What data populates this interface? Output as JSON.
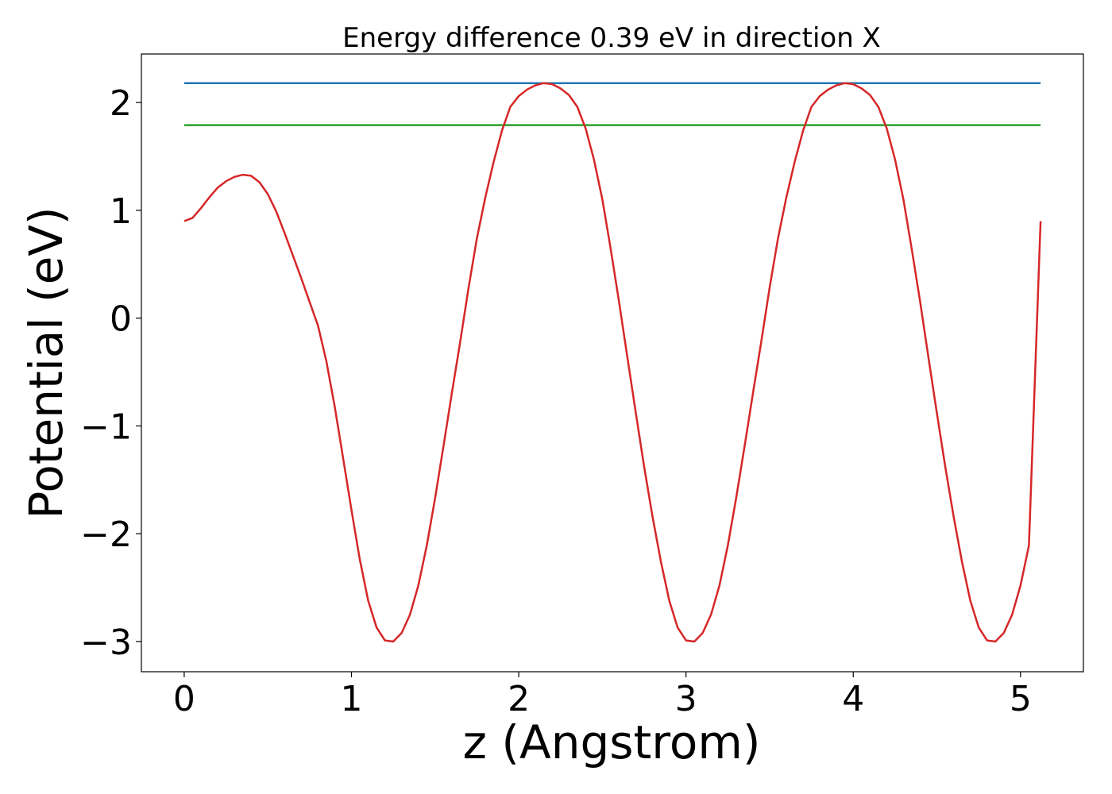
{
  "chart_data": {
    "type": "line",
    "title": "Energy difference 0.39 eV in direction X",
    "xlabel": "z (Angstrom)",
    "ylabel": "Potential (eV)",
    "xlim": [
      -0.256,
      5.376
    ],
    "ylim": [
      -3.28,
      2.45
    ],
    "x_ticks": [
      0,
      1,
      2,
      3,
      4,
      5
    ],
    "x_tick_labels": [
      "0",
      "1",
      "2",
      "3",
      "4",
      "5"
    ],
    "y_ticks": [
      2,
      1,
      0,
      -1,
      -2,
      -3
    ],
    "y_tick_labels": [
      "2",
      "1",
      "0",
      "−1",
      "−2",
      "−3"
    ],
    "grid": false,
    "series": [
      {
        "color": "#1f77b4",
        "x": [
          0,
          5.12
        ],
        "y": [
          2.18,
          2.18
        ]
      },
      {
        "color": "#2ca02c",
        "x": [
          0,
          5.12
        ],
        "y": [
          1.79,
          1.79
        ]
      },
      {
        "color": "#d62728",
        "x": [
          0,
          0.05,
          0.1,
          0.15,
          0.2,
          0.25,
          0.3,
          0.35,
          0.4,
          0.45,
          0.5,
          0.55,
          0.6,
          0.65,
          0.7,
          0.75,
          0.8,
          0.85,
          0.9,
          0.95,
          1.0,
          1.05,
          1.1,
          1.15,
          1.2,
          1.25,
          1.3,
          1.35,
          1.4,
          1.45,
          1.5,
          1.55,
          1.6,
          1.65,
          1.7,
          1.75,
          1.8,
          1.85,
          1.9,
          1.95,
          2.0,
          2.05,
          2.1,
          2.15,
          2.2,
          2.25,
          2.3,
          2.35,
          2.4,
          2.45,
          2.5,
          2.55,
          2.6,
          2.65,
          2.7,
          2.75,
          2.8,
          2.85,
          2.9,
          2.95,
          3.0,
          3.05,
          3.1,
          3.15,
          3.2,
          3.25,
          3.3,
          3.35,
          3.4,
          3.45,
          3.5,
          3.55,
          3.6,
          3.65,
          3.7,
          3.75,
          3.8,
          3.85,
          3.9,
          3.95,
          4.0,
          4.05,
          4.1,
          4.15,
          4.2,
          4.25,
          4.3,
          4.35,
          4.4,
          4.45,
          4.5,
          4.55,
          4.6,
          4.65,
          4.7,
          4.75,
          4.8,
          4.85,
          4.9,
          4.95,
          5.0,
          5.05,
          5.12
        ],
        "y": [
          0.9,
          0.93,
          1.02,
          1.12,
          1.21,
          1.27,
          1.31,
          1.33,
          1.32,
          1.26,
          1.15,
          0.99,
          0.79,
          0.58,
          0.37,
          0.15,
          -0.07,
          -0.4,
          -0.82,
          -1.3,
          -1.78,
          -2.24,
          -2.62,
          -2.87,
          -2.99,
          -3.0,
          -2.92,
          -2.75,
          -2.48,
          -2.11,
          -1.67,
          -1.19,
          -0.7,
          -0.22,
          0.28,
          0.74,
          1.12,
          1.45,
          1.74,
          1.96,
          2.06,
          2.12,
          2.16,
          2.18,
          2.17,
          2.13,
          2.07,
          1.96,
          1.76,
          1.47,
          1.1,
          0.64,
          0.15,
          -0.37,
          -0.88,
          -1.38,
          -1.84,
          -2.26,
          -2.62,
          -2.87,
          -2.99,
          -3.0,
          -2.92,
          -2.75,
          -2.48,
          -2.11,
          -1.67,
          -1.19,
          -0.7,
          -0.22,
          0.28,
          0.74,
          1.12,
          1.45,
          1.74,
          1.96,
          2.06,
          2.12,
          2.16,
          2.18,
          2.17,
          2.13,
          2.07,
          1.96,
          1.76,
          1.47,
          1.1,
          0.64,
          0.15,
          -0.37,
          -0.88,
          -1.38,
          -1.84,
          -2.26,
          -2.62,
          -2.87,
          -2.99,
          -3.0,
          -2.92,
          -2.75,
          -2.48,
          -2.11,
          0.9
        ]
      }
    ]
  }
}
